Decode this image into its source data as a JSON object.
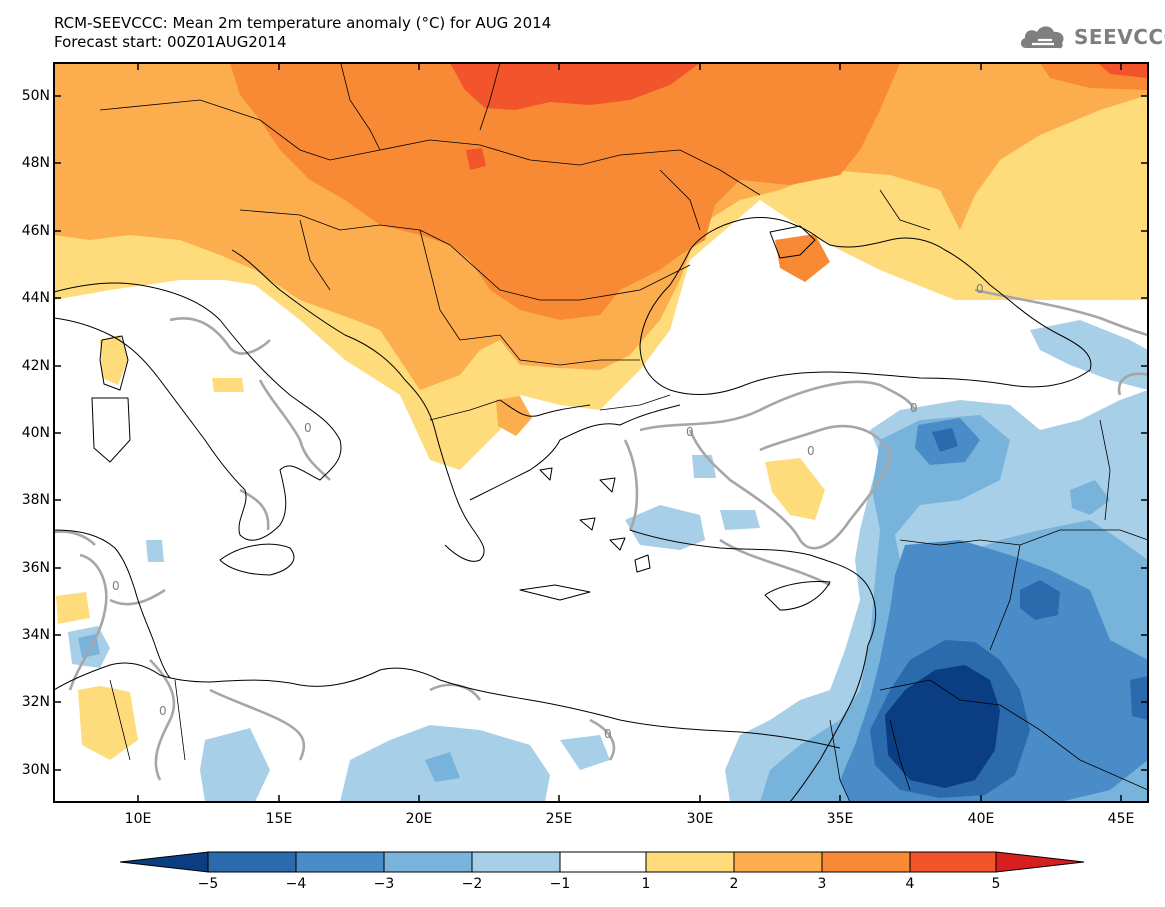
{
  "title": {
    "line1": "RCM-SEEVCCC: Mean 2m temperature anomaly (°C) for AUG 2014",
    "line2": "Forecast start: 00Z01AUG2014"
  },
  "logo": {
    "text": "SEEVCCC",
    "icon": "cloud-icon"
  },
  "map": {
    "lon_range": [
      7,
      46
    ],
    "lat_range": [
      29,
      51
    ],
    "lat_ticks": [
      "50N",
      "48N",
      "46N",
      "44N",
      "42N",
      "40N",
      "38N",
      "36N",
      "34N",
      "32N",
      "30N"
    ],
    "lon_ticks": [
      "10E",
      "15E",
      "20E",
      "25E",
      "30E",
      "35E",
      "40E",
      "45E"
    ],
    "contour_label": "0",
    "colors": {
      "sea": "#ffffff",
      "land_outline": "#000000",
      "zero_contour": "#a6a6a6"
    }
  },
  "colorbar": {
    "labels": [
      "−5",
      "−4",
      "−3",
      "−2",
      "−1",
      "1",
      "2",
      "3",
      "4",
      "5"
    ],
    "colors": [
      "#0a3d82",
      "#2a6aad",
      "#4a8cc8",
      "#78b3dc",
      "#a7cfe8",
      "#ffffff",
      "#fedb7b",
      "#fcae4f",
      "#f88a35",
      "#f2542b",
      "#d71f1f"
    ]
  }
}
